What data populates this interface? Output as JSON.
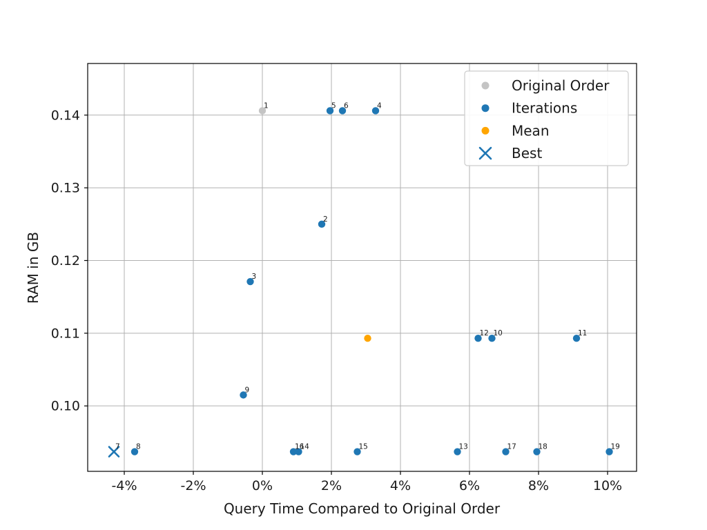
{
  "figure": {
    "background": "#ffffff",
    "plot_border_color": "#000000"
  },
  "chart_data": {
    "type": "scatter",
    "title": "",
    "xlabel": "Query Time Compared to Original Order",
    "ylabel": "RAM in GB",
    "xlim": [
      -5.06,
      10.84
    ],
    "ylim": [
      0.091,
      0.1471
    ],
    "grid": true,
    "grid_color": "#b0b0b0",
    "x_ticks": {
      "values": [
        -4,
        -2,
        0,
        2,
        4,
        6,
        8,
        10
      ],
      "labels": [
        "-4%",
        "-2%",
        "0%",
        "2%",
        "4%",
        "6%",
        "8%",
        "10%"
      ]
    },
    "y_ticks": {
      "values": [
        0.1,
        0.11,
        0.12,
        0.13,
        0.14
      ],
      "labels": [
        "0.10",
        "0.11",
        "0.12",
        "0.13",
        "0.14"
      ]
    },
    "legend": {
      "position": "upper right",
      "entries": [
        {
          "label": "Original Order",
          "marker": "circle",
          "color": "#c4c4c4"
        },
        {
          "label": "Iterations",
          "marker": "circle",
          "color": "#1f77b4"
        },
        {
          "label": "Mean",
          "marker": "circle",
          "color": "#ffa500"
        },
        {
          "label": "Best",
          "marker": "x",
          "color": "#1f77b4"
        }
      ]
    },
    "series": [
      {
        "name": "Original Order",
        "marker": "circle",
        "color": "#c4c4c4",
        "points": [
          {
            "x": 0.0,
            "y": 0.1406,
            "label": "1"
          }
        ]
      },
      {
        "name": "Iterations",
        "marker": "circle",
        "color": "#1f77b4",
        "points": [
          {
            "x": 1.72,
            "y": 0.125,
            "label": "2"
          },
          {
            "x": -0.35,
            "y": 0.1171,
            "label": "3"
          },
          {
            "x": 3.28,
            "y": 0.1406,
            "label": "4"
          },
          {
            "x": 1.96,
            "y": 0.1406,
            "label": "5"
          },
          {
            "x": 2.32,
            "y": 0.1406,
            "label": "6"
          },
          {
            "x": -3.7,
            "y": 0.0937,
            "label": "8"
          },
          {
            "x": -0.55,
            "y": 0.1015,
            "label": "9"
          },
          {
            "x": 6.65,
            "y": 0.1093,
            "label": "10"
          },
          {
            "x": 9.1,
            "y": 0.1093,
            "label": "11"
          },
          {
            "x": 6.25,
            "y": 0.1093,
            "label": "12"
          },
          {
            "x": 5.65,
            "y": 0.0937,
            "label": "13"
          },
          {
            "x": 1.05,
            "y": 0.0937,
            "label": "14"
          },
          {
            "x": 2.75,
            "y": 0.0937,
            "label": "15"
          },
          {
            "x": 0.9,
            "y": 0.0937,
            "label": "16"
          },
          {
            "x": 7.05,
            "y": 0.0937,
            "label": "17"
          },
          {
            "x": 7.95,
            "y": 0.0937,
            "label": "18"
          },
          {
            "x": 10.05,
            "y": 0.0937,
            "label": "19"
          }
        ]
      },
      {
        "name": "Mean",
        "marker": "circle",
        "color": "#ffa500",
        "points": [
          {
            "x": 3.05,
            "y": 0.1093,
            "label": ""
          }
        ]
      },
      {
        "name": "Best",
        "marker": "x",
        "color": "#1f77b4",
        "points": [
          {
            "x": -4.3,
            "y": 0.0937,
            "label": "7"
          }
        ]
      }
    ]
  }
}
